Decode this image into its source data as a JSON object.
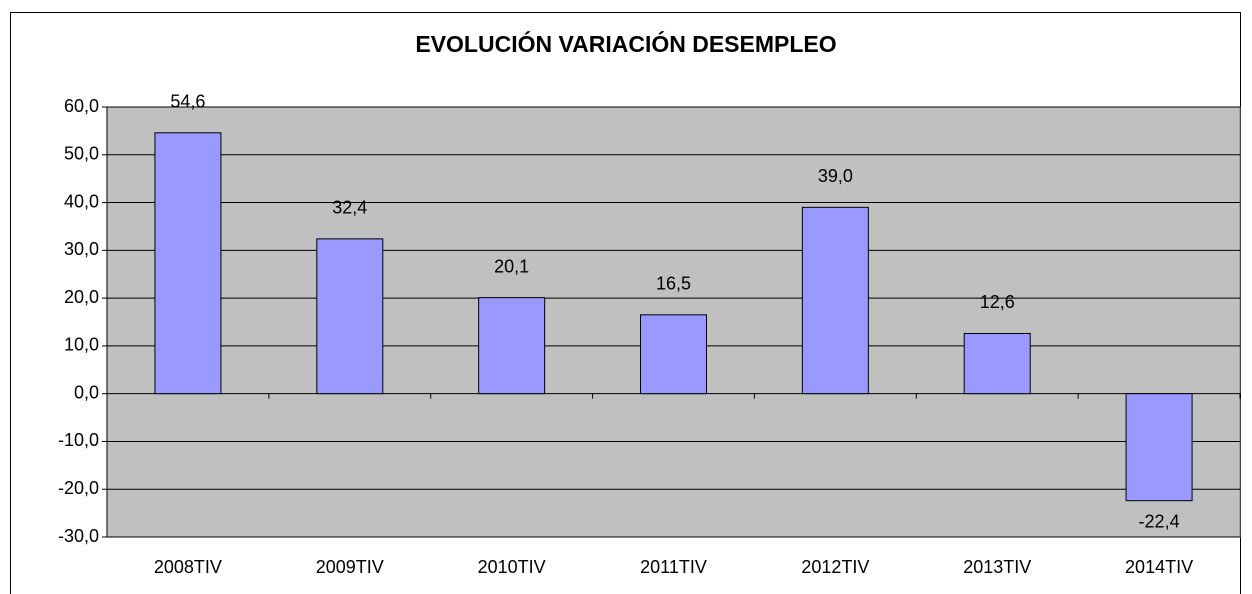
{
  "chart_data": {
    "type": "bar",
    "title": "EVOLUCIÓN VARIACIÓN DESEMPLEO",
    "categories": [
      "2008TIV",
      "2009TIV",
      "2010TIV",
      "2011TIV",
      "2012TIV",
      "2013TIV",
      "2014TIV"
    ],
    "values": [
      54.6,
      32.4,
      20.1,
      16.5,
      39.0,
      12.6,
      -22.4
    ],
    "value_labels": [
      "54,6",
      "32,4",
      "20,1",
      "16,5",
      "39,0",
      "12,6",
      "-22,4"
    ],
    "color": "#9999ff",
    "ylim": [
      -30,
      60
    ],
    "yticks": [
      {
        "value": -30,
        "label": "-30,0"
      },
      {
        "value": -20,
        "label": "-20,0"
      },
      {
        "value": -10,
        "label": "-10,0"
      },
      {
        "value": 0,
        "label": "0,0"
      },
      {
        "value": 10,
        "label": "10,0"
      },
      {
        "value": 20,
        "label": "20,0"
      },
      {
        "value": 30,
        "label": "30,0"
      },
      {
        "value": 40,
        "label": "40,0"
      },
      {
        "value": 50,
        "label": "50,0"
      },
      {
        "value": 60,
        "label": "60,0"
      }
    ],
    "grid": true
  }
}
